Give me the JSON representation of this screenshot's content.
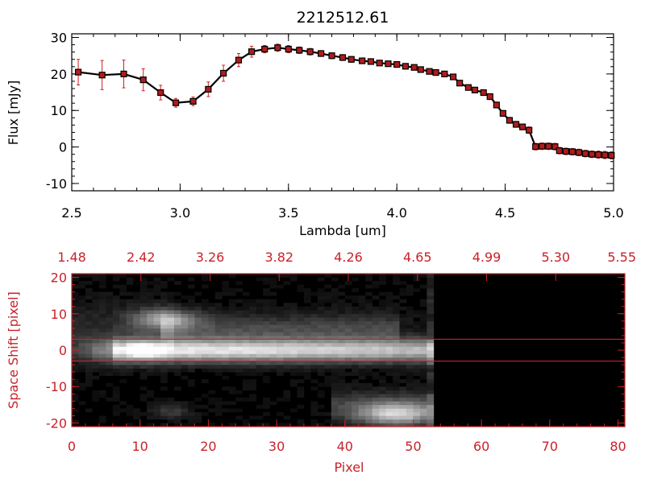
{
  "chart_data": [
    {
      "type": "line",
      "title": "2212512.61",
      "xlabel": "Lambda [um]",
      "ylabel": "Flux [mJy]",
      "xlim": [
        2.5,
        5.0
      ],
      "ylim": [
        -12,
        31
      ],
      "x_ticks": [
        "2.5",
        "3.0",
        "3.5",
        "4.0",
        "4.5",
        "5.0"
      ],
      "y_ticks": [
        "-10",
        "0",
        "10",
        "20",
        "30"
      ],
      "line_color": "#000000",
      "marker_color": "#b01c1c",
      "errorbar_color": "#c8222a",
      "series": [
        {
          "x": [
            2.53,
            2.64,
            2.74,
            2.83,
            2.91,
            2.98,
            3.06,
            3.13,
            3.2,
            3.27,
            3.33,
            3.39,
            3.45,
            3.5,
            3.55,
            3.6,
            3.65,
            3.7,
            3.75,
            3.79,
            3.84,
            3.88,
            3.92,
            3.96,
            4.0,
            4.04,
            4.08,
            4.11,
            4.15,
            4.18,
            4.22,
            4.26,
            4.29,
            4.33,
            4.36,
            4.4,
            4.43,
            4.46,
            4.49,
            4.52,
            4.55,
            4.58,
            4.61,
            4.64,
            4.67,
            4.7,
            4.73,
            4.75,
            4.78,
            4.81,
            4.84,
            4.87,
            4.9,
            4.93,
            4.96,
            4.99
          ],
          "y": [
            20.5,
            19.7,
            20.0,
            18.4,
            14.9,
            12.1,
            12.5,
            15.8,
            20.2,
            23.8,
            26.1,
            26.8,
            27.2,
            26.8,
            26.5,
            26.1,
            25.6,
            25.0,
            24.5,
            24.0,
            23.6,
            23.4,
            23.0,
            22.8,
            22.6,
            22.1,
            21.8,
            21.2,
            20.7,
            20.4,
            20.0,
            19.2,
            17.5,
            16.3,
            15.6,
            14.9,
            13.8,
            11.5,
            9.2,
            7.3,
            6.2,
            5.5,
            4.6,
            0.1,
            0.2,
            0.2,
            0.1,
            -1.0,
            -1.2,
            -1.3,
            -1.5,
            -1.8,
            -2.0,
            -2.1,
            -2.2,
            -2.3
          ],
          "err": [
            3.5,
            4.0,
            3.8,
            3.0,
            2.0,
            1.2,
            1.2,
            2.0,
            2.2,
            1.8,
            1.5,
            1.0,
            1.0,
            1.0,
            0.9,
            0.9,
            0.8,
            0.8,
            0.8,
            0.8,
            0.7,
            0.7,
            0.7,
            0.7,
            0.7,
            0.7,
            0.7,
            0.7,
            0.7,
            0.7,
            0.7,
            0.7,
            0.7,
            0.7,
            0.7,
            0.7,
            0.8,
            0.8,
            0.8,
            0.8,
            0.8,
            0.8,
            0.9,
            0.9,
            0.9,
            0.9,
            0.9,
            0.9,
            0.9,
            0.9,
            0.9,
            0.9,
            0.9,
            1.0,
            1.0,
            1.0
          ]
        }
      ]
    },
    {
      "type": "heatmap",
      "xlabel": "Pixel",
      "ylabel": "Space Shift [pixel]",
      "xlim": [
        0,
        81
      ],
      "ylim": [
        -21,
        21
      ],
      "x_ticks": [
        "0",
        "10",
        "20",
        "30",
        "40",
        "50",
        "60",
        "70",
        "80"
      ],
      "y_ticks": [
        "-20",
        "-10",
        "0",
        "10",
        "20"
      ],
      "top_ticks": [
        "1.48",
        "2.42",
        "3.26",
        "3.82",
        "4.26",
        "4.65",
        "4.99",
        "5.30",
        "5.55"
      ],
      "aperture_lines": [
        3,
        -3
      ],
      "data_cutoff_pixel": 53,
      "axis_color": "#c8222a"
    }
  ]
}
